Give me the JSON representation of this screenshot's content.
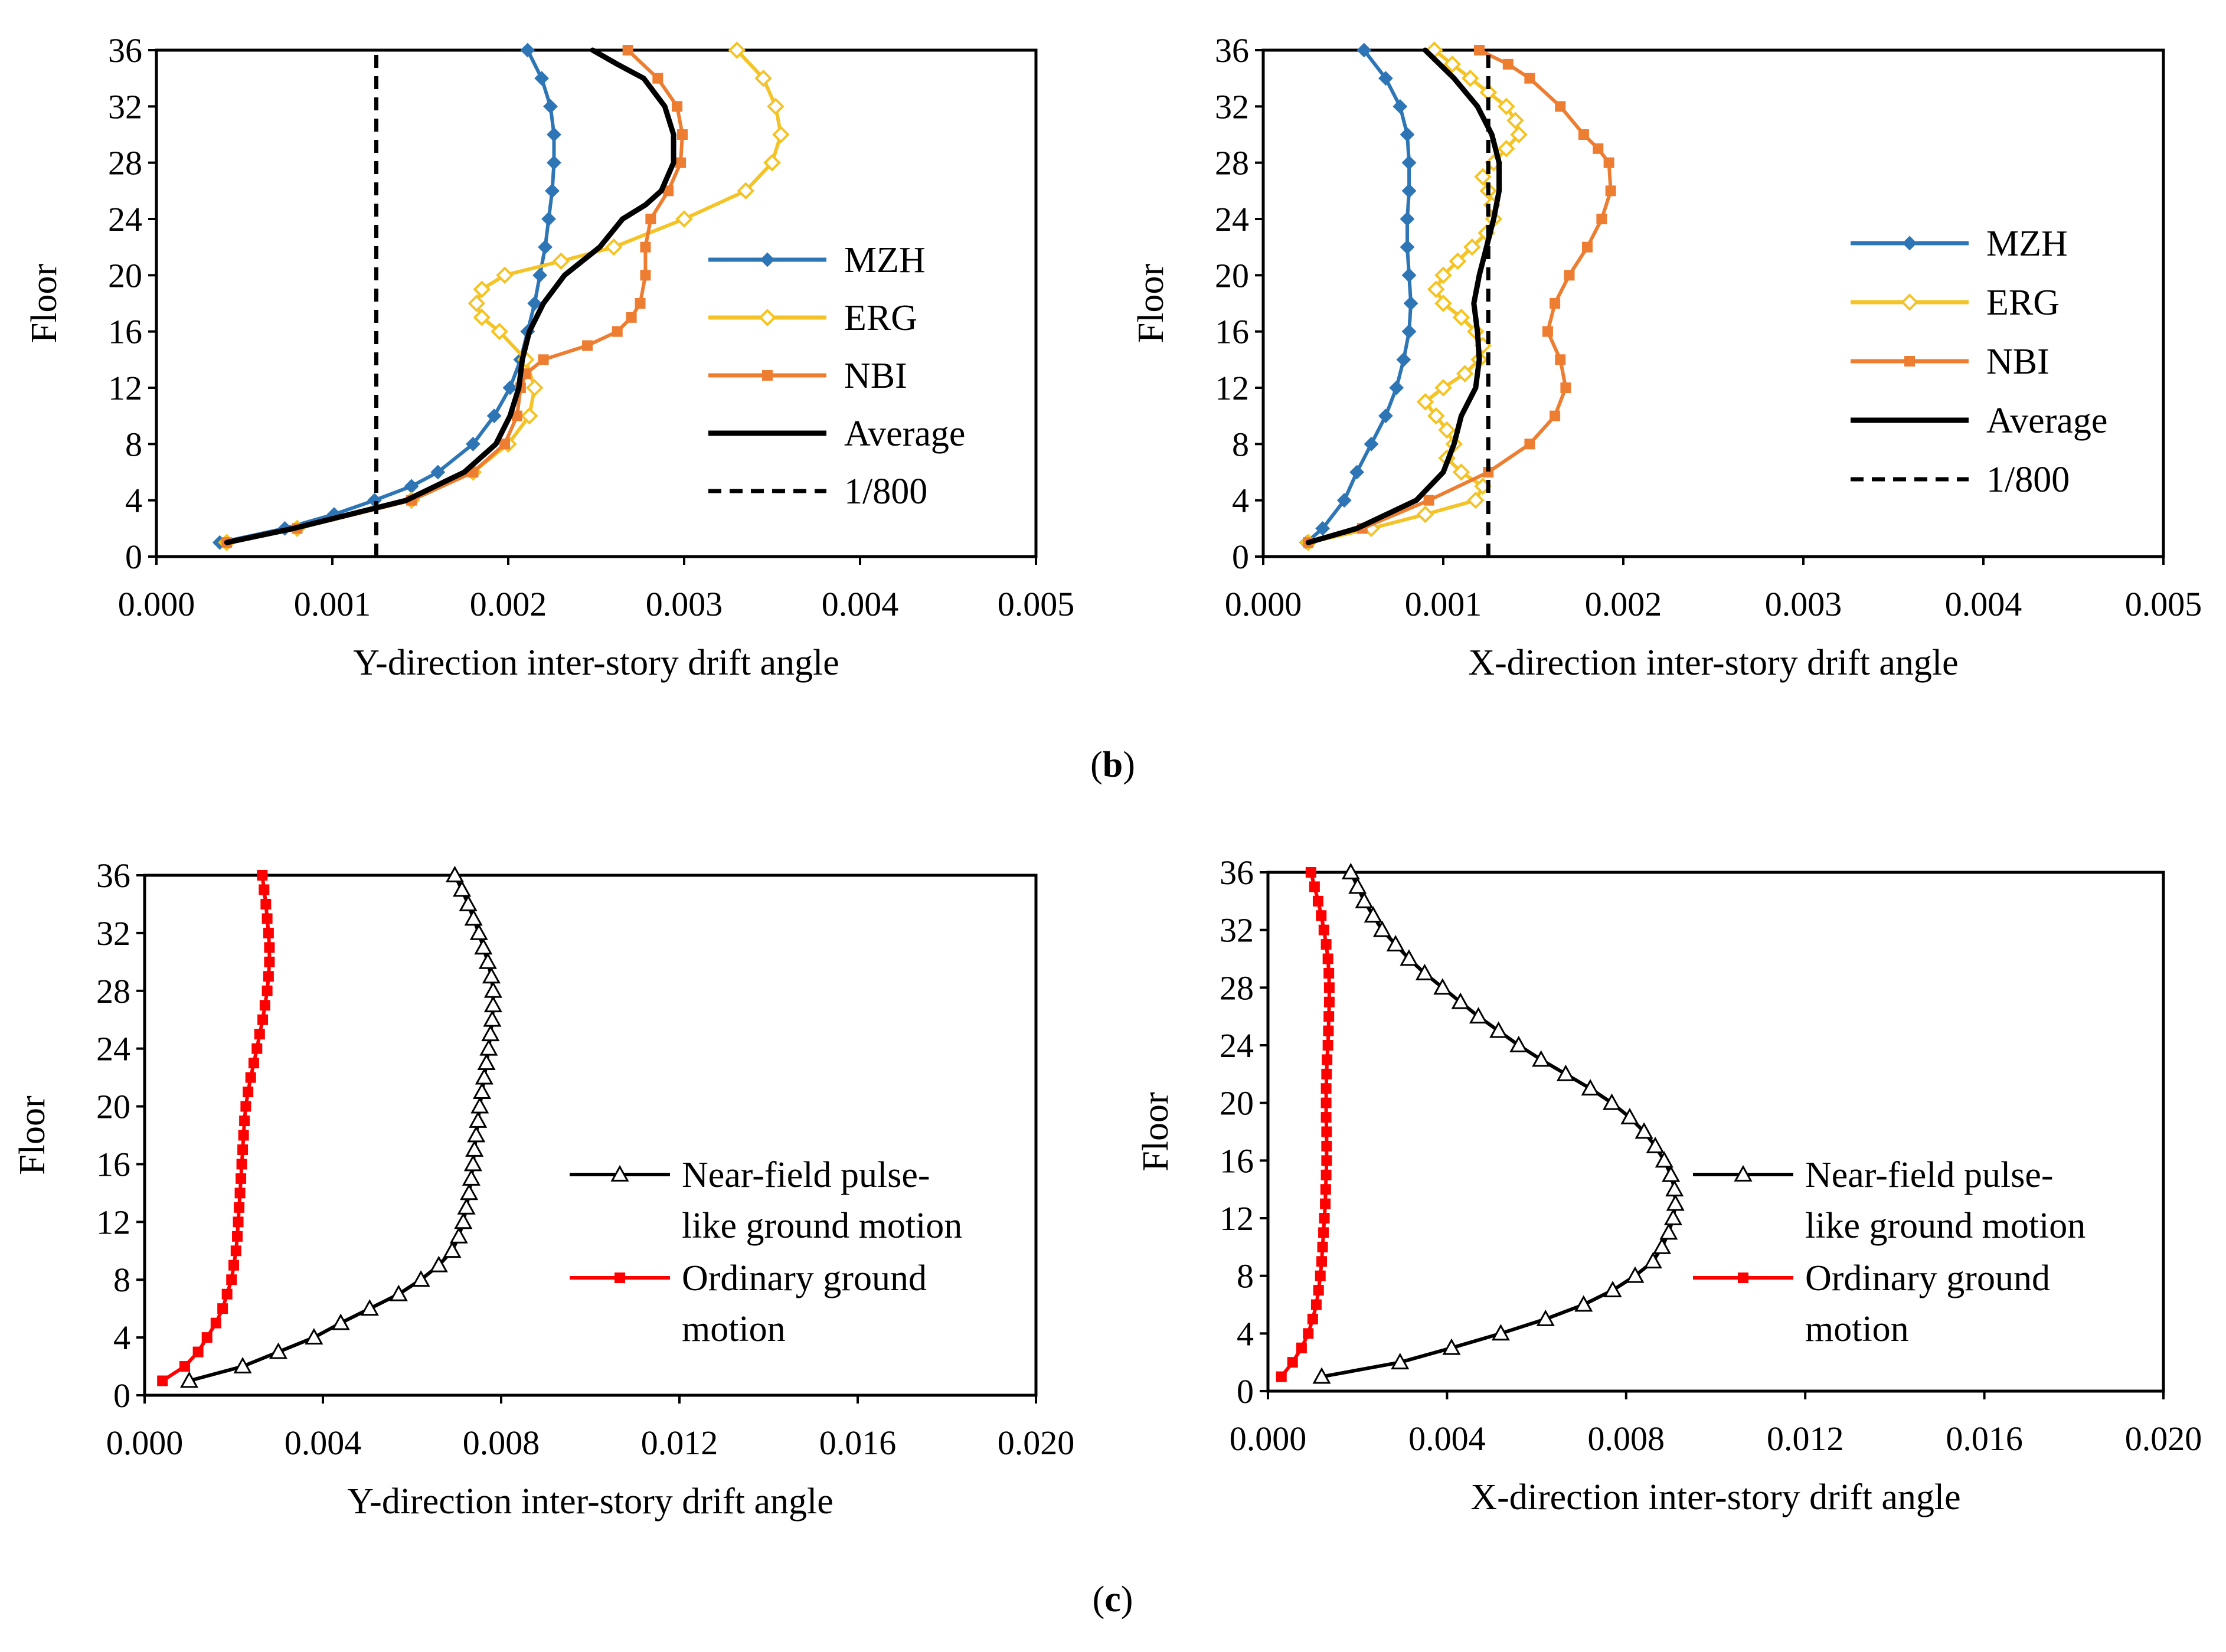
{
  "captions": {
    "b": "b",
    "c": "c"
  },
  "chart_data": [
    {
      "id": "b-left",
      "type": "line",
      "xlabel": "Y-direction inter-story drift angle",
      "ylabel": "Floor",
      "xlim": [
        0,
        0.005
      ],
      "ylim": [
        0,
        36
      ],
      "x_ticks": [
        "0.000",
        "0.001",
        "0.002",
        "0.003",
        "0.004",
        "0.005"
      ],
      "y_ticks": [
        "0",
        "4",
        "8",
        "12",
        "16",
        "20",
        "24",
        "28",
        "32",
        "36"
      ],
      "legend": "right",
      "colors": {
        "MZH": "#2e75b6",
        "ERG": "#f4c326",
        "NBI": "#ed7d31",
        "Average": "#000000",
        "1/800": "#000000"
      },
      "series": [
        {
          "name": "MZH",
          "marker": "diamond",
          "floors": [
            1,
            2,
            3,
            4,
            5,
            6,
            8,
            10,
            12,
            14,
            16,
            18,
            20,
            22,
            24,
            26,
            28,
            30,
            32,
            34,
            36
          ],
          "values": [
            0.00036,
            0.00073,
            0.00101,
            0.00124,
            0.00145,
            0.0016,
            0.0018,
            0.00192,
            0.00201,
            0.00207,
            0.00211,
            0.00215,
            0.00218,
            0.00221,
            0.00223,
            0.00225,
            0.00226,
            0.00226,
            0.00224,
            0.00219,
            0.00211
          ]
        },
        {
          "name": "ERG",
          "marker": "open-diamond",
          "floors": [
            1,
            2,
            4,
            6,
            8,
            10,
            12,
            14,
            16,
            17,
            18,
            19,
            20,
            21,
            22,
            24,
            26,
            28,
            30,
            32,
            34,
            36
          ],
          "values": [
            0.0004,
            0.0008,
            0.00145,
            0.0018,
            0.002,
            0.00212,
            0.00215,
            0.0021,
            0.00195,
            0.00185,
            0.00182,
            0.00185,
            0.00198,
            0.0023,
            0.0026,
            0.003,
            0.00335,
            0.0035,
            0.00355,
            0.00352,
            0.00345,
            0.0033
          ]
        },
        {
          "name": "NBI",
          "marker": "square",
          "floors": [
            1,
            2,
            4,
            6,
            8,
            10,
            12,
            13,
            14,
            15,
            16,
            17,
            18,
            20,
            22,
            24,
            26,
            28,
            30,
            32,
            34,
            36
          ],
          "values": [
            0.0004,
            0.0008,
            0.00145,
            0.0018,
            0.00198,
            0.00205,
            0.00207,
            0.0021,
            0.0022,
            0.00245,
            0.00262,
            0.0027,
            0.00275,
            0.00278,
            0.00278,
            0.00281,
            0.00291,
            0.00298,
            0.00299,
            0.00296,
            0.00285,
            0.00268
          ]
        },
        {
          "name": "Average",
          "marker": "none",
          "floors": [
            1,
            2,
            4,
            6,
            8,
            10,
            12,
            14,
            16,
            18,
            20,
            22,
            24,
            25,
            26,
            28,
            30,
            32,
            34,
            35,
            36
          ],
          "values": [
            0.0004,
            0.00078,
            0.00142,
            0.00175,
            0.00193,
            0.00201,
            0.00206,
            0.00208,
            0.00212,
            0.0022,
            0.00232,
            0.00252,
            0.00265,
            0.00278,
            0.00287,
            0.00294,
            0.00294,
            0.00289,
            0.00277,
            0.00262,
            0.00248
          ]
        },
        {
          "name": "1/800",
          "marker": "none",
          "dash": true,
          "floors": [
            0,
            36
          ],
          "values": [
            0.00125,
            0.00125
          ]
        }
      ]
    },
    {
      "id": "b-right",
      "type": "line",
      "xlabel": "X-direction inter-story drift angle",
      "ylabel": "Floor",
      "xlim": [
        0,
        0.005
      ],
      "ylim": [
        0,
        36
      ],
      "x_ticks": [
        "0.000",
        "0.001",
        "0.002",
        "0.003",
        "0.004",
        "0.005"
      ],
      "y_ticks": [
        "0",
        "4",
        "8",
        "12",
        "16",
        "20",
        "24",
        "28",
        "32",
        "36"
      ],
      "legend": "right",
      "colors": {
        "MZH": "#2e75b6",
        "ERG": "#f4c326",
        "NBI": "#ed7d31",
        "Average": "#000000",
        "1/800": "#000000"
      },
      "series": [
        {
          "name": "MZH",
          "marker": "diamond",
          "floors": [
            1,
            2,
            4,
            6,
            8,
            10,
            12,
            14,
            16,
            18,
            20,
            22,
            24,
            26,
            28,
            30,
            32,
            34,
            36
          ],
          "values": [
            0.00024,
            0.00033,
            0.00045,
            0.00052,
            0.0006,
            0.00068,
            0.00074,
            0.00078,
            0.00081,
            0.00082,
            0.00081,
            0.0008,
            0.0008,
            0.00081,
            0.00081,
            0.0008,
            0.00076,
            0.00068,
            0.00056
          ]
        },
        {
          "name": "ERG",
          "marker": "open-diamond",
          "floors": [
            1,
            2,
            3,
            4,
            5,
            6,
            7,
            8,
            9,
            10,
            11,
            12,
            13,
            14,
            15,
            16,
            17,
            18,
            19,
            20,
            21,
            22,
            23,
            24,
            25,
            26,
            27,
            28,
            29,
            30,
            31,
            32,
            33,
            34,
            35,
            36
          ],
          "values": [
            0.00025,
            0.0006,
            0.0009,
            0.00118,
            0.00122,
            0.0011,
            0.00102,
            0.00106,
            0.00102,
            0.00096,
            0.0009,
            0.001,
            0.00112,
            0.0012,
            0.00122,
            0.00118,
            0.0011,
            0.001,
            0.00096,
            0.001,
            0.00108,
            0.00116,
            0.00124,
            0.00128,
            0.00127,
            0.00125,
            0.00122,
            0.00128,
            0.00135,
            0.00142,
            0.0014,
            0.00135,
            0.00125,
            0.00115,
            0.00105,
            0.00095
          ]
        },
        {
          "name": "NBI",
          "marker": "square",
          "floors": [
            1,
            2,
            4,
            6,
            8,
            10,
            12,
            14,
            16,
            18,
            20,
            22,
            24,
            26,
            28,
            29,
            30,
            32,
            34,
            35,
            36
          ],
          "values": [
            0.00025,
            0.00055,
            0.00092,
            0.00125,
            0.00148,
            0.00162,
            0.00168,
            0.00165,
            0.00158,
            0.00162,
            0.0017,
            0.0018,
            0.00188,
            0.00193,
            0.00192,
            0.00186,
            0.00178,
            0.00165,
            0.00148,
            0.00136,
            0.0012
          ]
        },
        {
          "name": "Average",
          "marker": "none",
          "floors": [
            1,
            2,
            4,
            6,
            8,
            10,
            12,
            14,
            16,
            18,
            20,
            22,
            24,
            26,
            28,
            30,
            32,
            34,
            36
          ],
          "values": [
            0.00025,
            0.00052,
            0.00085,
            0.001,
            0.00106,
            0.0011,
            0.00118,
            0.0012,
            0.00119,
            0.00117,
            0.0012,
            0.00124,
            0.00128,
            0.00131,
            0.00131,
            0.00127,
            0.00119,
            0.00106,
            0.0009
          ]
        },
        {
          "name": "1/800",
          "marker": "none",
          "dash": true,
          "floors": [
            0,
            36
          ],
          "values": [
            0.00125,
            0.00125
          ]
        }
      ]
    },
    {
      "id": "c-left",
      "type": "line",
      "xlabel": "Y-direction inter-story drift angle",
      "ylabel": "Floor",
      "xlim": [
        0,
        0.02
      ],
      "ylim": [
        0,
        36
      ],
      "x_ticks": [
        "0.000",
        "0.004",
        "0.008",
        "0.012",
        "0.016",
        "0.020"
      ],
      "y_ticks": [
        "0",
        "4",
        "8",
        "12",
        "16",
        "20",
        "24",
        "28",
        "32",
        "36"
      ],
      "legend": "right",
      "colors": {
        "Near-field": "#000000",
        "Ordinary": "#ff0000"
      },
      "series": [
        {
          "name": "Near-field pulse-like ground motion",
          "marker": "open-triangle",
          "color": "#000000",
          "floors": [
            1,
            2,
            3,
            4,
            5,
            6,
            7,
            8,
            9,
            10,
            11,
            12,
            13,
            14,
            15,
            16,
            17,
            18,
            19,
            20,
            21,
            22,
            23,
            24,
            25,
            26,
            27,
            28,
            29,
            30,
            31,
            32,
            33,
            34,
            35,
            36
          ],
          "values": [
            0.001,
            0.0022,
            0.003,
            0.0038,
            0.0044,
            0.00505,
            0.0057,
            0.0062,
            0.0066,
            0.0069,
            0.00705,
            0.00715,
            0.00722,
            0.00728,
            0.00733,
            0.00737,
            0.0074,
            0.00744,
            0.00748,
            0.00752,
            0.00757,
            0.00762,
            0.00767,
            0.00772,
            0.00776,
            0.0078,
            0.00782,
            0.00782,
            0.00778,
            0.0077,
            0.0076,
            0.0075,
            0.00738,
            0.00726,
            0.00712,
            0.00696
          ]
        },
        {
          "name": "Ordinary ground motion",
          "marker": "square",
          "color": "#ff0000",
          "floors": [
            1,
            2,
            3,
            4,
            5,
            6,
            7,
            8,
            9,
            10,
            11,
            12,
            13,
            14,
            15,
            16,
            17,
            18,
            19,
            20,
            21,
            22,
            23,
            24,
            25,
            26,
            27,
            28,
            29,
            30,
            31,
            32,
            33,
            34,
            35,
            36
          ],
          "values": [
            0.0004,
            0.0009,
            0.0012,
            0.0014,
            0.0016,
            0.00175,
            0.00185,
            0.00195,
            0.002,
            0.00205,
            0.00208,
            0.0021,
            0.00212,
            0.00214,
            0.00216,
            0.00218,
            0.0022,
            0.00222,
            0.00224,
            0.00227,
            0.00232,
            0.00238,
            0.00245,
            0.00252,
            0.00258,
            0.00265,
            0.0027,
            0.00275,
            0.00278,
            0.0028,
            0.0028,
            0.00278,
            0.00275,
            0.00272,
            0.00268,
            0.00264
          ]
        }
      ]
    },
    {
      "id": "c-right",
      "type": "line",
      "xlabel": "X-direction inter-story drift angle",
      "ylabel": "Floor",
      "xlim": [
        0,
        0.02
      ],
      "ylim": [
        0,
        36
      ],
      "x_ticks": [
        "0.000",
        "0.004",
        "0.008",
        "0.012",
        "0.016",
        "0.020"
      ],
      "y_ticks": [
        "0",
        "4",
        "8",
        "12",
        "16",
        "20",
        "24",
        "28",
        "32",
        "36"
      ],
      "legend": "right",
      "colors": {
        "Near-field": "#000000",
        "Ordinary": "#ff0000"
      },
      "series": [
        {
          "name": "Near-field pulse-like ground motion",
          "marker": "open-triangle",
          "color": "#000000",
          "floors": [
            1,
            2,
            3,
            4,
            5,
            6,
            7,
            8,
            9,
            10,
            11,
            12,
            13,
            14,
            15,
            16,
            17,
            18,
            19,
            20,
            21,
            22,
            23,
            24,
            25,
            26,
            27,
            28,
            29,
            30,
            31,
            32,
            33,
            34,
            35,
            36
          ],
          "values": [
            0.0012,
            0.00295,
            0.0041,
            0.0052,
            0.0062,
            0.00705,
            0.0077,
            0.0082,
            0.0086,
            0.0088,
            0.00895,
            0.00905,
            0.0091,
            0.00908,
            0.009,
            0.00885,
            0.00865,
            0.0084,
            0.00808,
            0.00768,
            0.0072,
            0.00665,
            0.0061,
            0.0056,
            0.00515,
            0.0047,
            0.0043,
            0.0039,
            0.0035,
            0.00315,
            0.00285,
            0.00255,
            0.00235,
            0.00215,
            0.002,
            0.00185
          ]
        },
        {
          "name": "Ordinary ground motion",
          "marker": "square",
          "color": "#ff0000",
          "floors": [
            1,
            2,
            3,
            4,
            5,
            6,
            7,
            8,
            9,
            10,
            11,
            12,
            13,
            14,
            15,
            16,
            17,
            18,
            19,
            20,
            21,
            22,
            23,
            24,
            25,
            26,
            27,
            28,
            29,
            30,
            31,
            32,
            33,
            34,
            35,
            36
          ],
          "values": [
            0.0003,
            0.00055,
            0.00075,
            0.0009,
            0.001,
            0.00108,
            0.00113,
            0.00117,
            0.0012,
            0.00122,
            0.00124,
            0.00126,
            0.00128,
            0.00129,
            0.0013,
            0.00131,
            0.00131,
            0.00131,
            0.0013,
            0.0013,
            0.0013,
            0.00131,
            0.00132,
            0.00134,
            0.00135,
            0.00136,
            0.00137,
            0.00137,
            0.00136,
            0.00134,
            0.0013,
            0.00125,
            0.00119,
            0.00112,
            0.00104,
            0.00096
          ]
        }
      ]
    }
  ],
  "legend_text": {
    "b": [
      "MZH",
      "ERG",
      "NBI",
      "Average",
      "1/800"
    ],
    "c": [
      [
        "Near-field pulse-",
        "like ground motion"
      ],
      [
        "Ordinary ground",
        "motion"
      ]
    ]
  }
}
